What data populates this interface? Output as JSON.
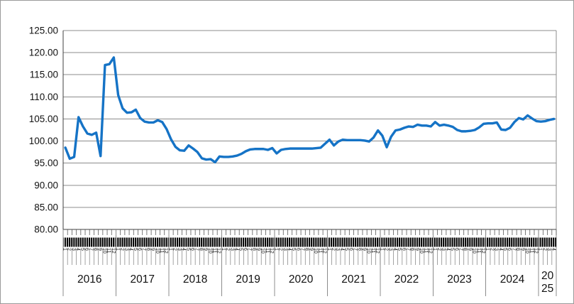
{
  "figure": {
    "background": "#ffffff",
    "border_color": "#9a9a9a"
  },
  "chart_data": {
    "type": "line",
    "title": "",
    "legend": "none",
    "grid": true,
    "ylim": [
      80,
      125
    ],
    "ytick_step": 5,
    "ytick_labels": [
      "125.00",
      "120.00",
      "115.00",
      "110.00",
      "105.00",
      "100.00",
      "95.00",
      "90.00",
      "85.00",
      "80.00"
    ],
    "line_color": "#1573C6",
    "gridline_color": "#8c8c8c",
    "axis_color": "#404040",
    "tick_color": "#595959",
    "month_tick_labels": [
      "1",
      "2",
      "3",
      "4",
      "5",
      "6",
      "7",
      "8",
      "9",
      "10",
      "11",
      "12"
    ],
    "years": [
      {
        "label": "2016",
        "values": [
          98.5,
          96.0,
          96.4,
          105.4,
          103.3,
          101.7,
          101.4,
          101.9,
          96.6,
          117.2,
          117.4,
          118.9
        ]
      },
      {
        "label": "2017",
        "values": [
          110.4,
          107.4,
          106.4,
          106.5,
          107.1,
          105.2,
          104.4,
          104.2,
          104.2,
          104.7,
          104.3,
          102.7
        ]
      },
      {
        "label": "2018",
        "values": [
          100.4,
          98.7,
          97.9,
          97.8,
          99.0,
          98.3,
          97.5,
          96.1,
          95.8,
          95.9,
          95.2,
          96.5
        ]
      },
      {
        "label": "2019",
        "values": [
          96.4,
          96.4,
          96.5,
          96.7,
          97.1,
          97.7,
          98.1,
          98.2,
          98.2,
          98.2,
          98.0,
          98.4
        ]
      },
      {
        "label": "2020",
        "values": [
          97.2,
          98.0,
          98.2,
          98.3,
          98.3,
          98.3,
          98.3,
          98.3,
          98.3,
          98.4,
          98.5,
          99.4
        ]
      },
      {
        "label": "2021",
        "values": [
          100.3,
          99.0,
          99.9,
          100.3,
          100.2,
          100.2,
          100.2,
          100.2,
          100.1,
          99.9,
          100.8,
          102.4
        ]
      },
      {
        "label": "2022",
        "values": [
          101.2,
          98.6,
          101.0,
          102.4,
          102.6,
          103.0,
          103.3,
          103.2,
          103.7,
          103.5,
          103.5,
          103.3
        ]
      },
      {
        "label": "2023",
        "values": [
          104.3,
          103.5,
          103.7,
          103.5,
          103.2,
          102.5,
          102.2,
          102.2,
          102.3,
          102.5,
          103.1,
          103.9
        ]
      },
      {
        "label": "2024",
        "values": [
          104.0,
          104.0,
          104.2,
          102.6,
          102.5,
          103.0,
          104.3,
          105.2,
          104.9,
          105.8,
          105.1,
          104.5
        ]
      },
      {
        "label": "2025",
        "values": [
          104.4,
          104.5,
          104.8,
          105.0
        ]
      }
    ]
  }
}
